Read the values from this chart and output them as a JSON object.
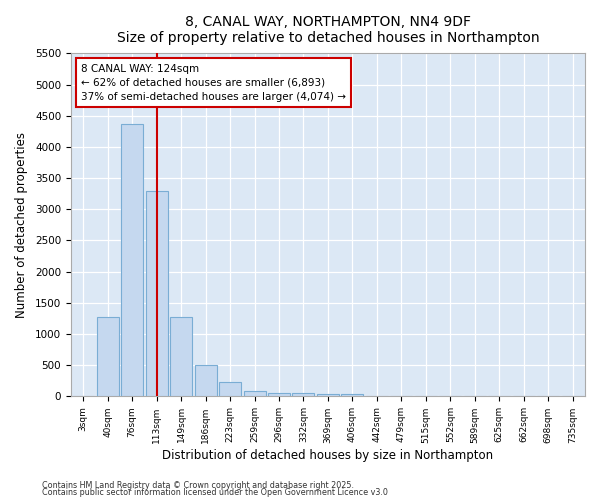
{
  "title": "8, CANAL WAY, NORTHAMPTON, NN4 9DF",
  "subtitle": "Size of property relative to detached houses in Northampton",
  "xlabel": "Distribution of detached houses by size in Northampton",
  "ylabel": "Number of detached properties",
  "categories": [
    "3sqm",
    "40sqm",
    "76sqm",
    "113sqm",
    "149sqm",
    "186sqm",
    "223sqm",
    "259sqm",
    "296sqm",
    "332sqm",
    "369sqm",
    "406sqm",
    "442sqm",
    "479sqm",
    "515sqm",
    "552sqm",
    "589sqm",
    "625sqm",
    "662sqm",
    "698sqm",
    "735sqm"
  ],
  "values": [
    0,
    1270,
    4370,
    3300,
    1280,
    500,
    225,
    85,
    60,
    50,
    38,
    35,
    0,
    0,
    0,
    0,
    0,
    0,
    0,
    0,
    0
  ],
  "bar_color": "#c5d8ef",
  "bar_edge_color": "#7aadd4",
  "annotation_line1": "8 CANAL WAY: 124sqm",
  "annotation_line2": "← 62% of detached houses are smaller (6,893)",
  "annotation_line3": "37% of semi-detached houses are larger (4,074) →",
  "vline_x": 3.0,
  "vline_color": "#cc0000",
  "ylim": [
    0,
    5500
  ],
  "yticks": [
    0,
    500,
    1000,
    1500,
    2000,
    2500,
    3000,
    3500,
    4000,
    4500,
    5000,
    5500
  ],
  "bg_color": "#dce8f5",
  "grid_color": "#c5d8ef",
  "fig_bg_color": "#ffffff",
  "footer1": "Contains HM Land Registry data © Crown copyright and database right 2025.",
  "footer2": "Contains public sector information licensed under the Open Government Licence v3.0"
}
